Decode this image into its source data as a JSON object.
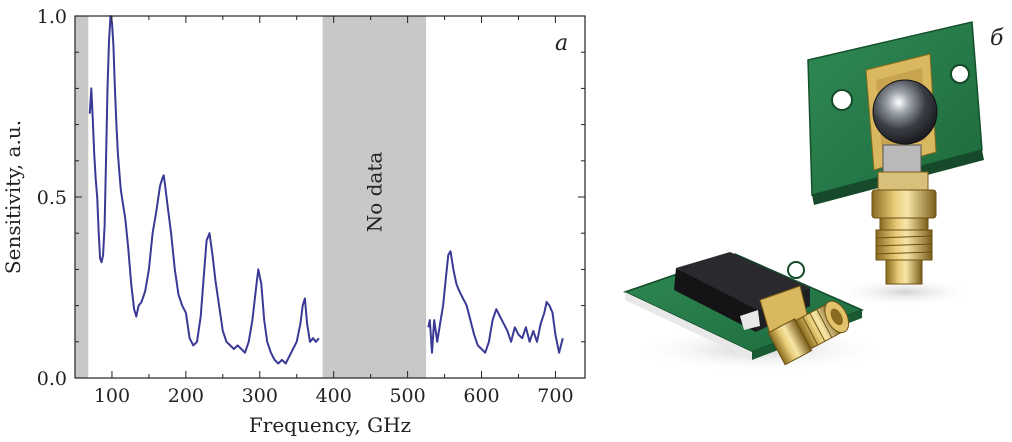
{
  "panel_a_label": "a",
  "panel_b_label": "б",
  "no_data_label": "No data",
  "colors": {
    "line": "#3a3a96",
    "shade": "#c8c8c8",
    "axis": "#222222"
  },
  "chart_data": {
    "type": "line",
    "xlabel": "Frequency, GHz",
    "ylabel": "Sensitivity, a.u.",
    "xlim": [
      50,
      740
    ],
    "ylim": [
      0.0,
      1.0
    ],
    "x_ticks": [
      100,
      200,
      300,
      400,
      500,
      600,
      700
    ],
    "y_ticks": [
      0.0,
      0.5,
      1.0
    ],
    "y_tick_labels": [
      "0.0",
      "0.5",
      "1.0"
    ],
    "grid": false,
    "shaded_regions": [
      [
        50,
        68
      ],
      [
        385,
        525
      ]
    ],
    "series": [
      {
        "segments": [
          {
            "x": [
              70,
              72,
              74,
              76,
              78,
              80,
              82,
              84,
              86,
              88,
              90,
              92,
              94,
              96,
              98,
              100,
              102,
              104,
              106,
              108,
              110,
              112,
              115,
              118,
              122,
              126,
              130,
              133,
              136,
              140,
              145,
              150,
              155,
              160,
              165,
              168,
              170,
              172,
              175,
              180,
              185,
              190,
              195,
              200,
              205,
              210,
              215,
              220,
              225,
              228,
              232,
              236,
              240,
              245,
              250,
              255,
              260,
              265,
              270,
              275,
              280,
              285,
              290,
              295,
              298,
              302,
              306,
              310,
              315,
              320,
              325,
              330,
              335,
              340,
              345,
              350,
              355,
              358,
              361,
              364,
              368,
              372,
              376,
              380
            ],
            "y": [
              0.73,
              0.8,
              0.72,
              0.62,
              0.55,
              0.5,
              0.4,
              0.33,
              0.32,
              0.34,
              0.42,
              0.6,
              0.8,
              0.93,
              1.0,
              0.98,
              0.92,
              0.8,
              0.7,
              0.62,
              0.57,
              0.52,
              0.48,
              0.44,
              0.36,
              0.26,
              0.19,
              0.17,
              0.2,
              0.21,
              0.24,
              0.3,
              0.4,
              0.46,
              0.53,
              0.55,
              0.56,
              0.53,
              0.48,
              0.4,
              0.3,
              0.23,
              0.2,
              0.18,
              0.11,
              0.09,
              0.1,
              0.17,
              0.3,
              0.38,
              0.4,
              0.34,
              0.27,
              0.2,
              0.13,
              0.1,
              0.09,
              0.08,
              0.09,
              0.08,
              0.07,
              0.1,
              0.16,
              0.25,
              0.3,
              0.26,
              0.16,
              0.1,
              0.07,
              0.05,
              0.04,
              0.05,
              0.04,
              0.06,
              0.08,
              0.1,
              0.15,
              0.2,
              0.22,
              0.15,
              0.1,
              0.11,
              0.1,
              0.11
            ]
          },
          {
            "x": [
              528,
              530,
              533,
              536,
              540,
              544,
              548,
              552,
              555,
              558,
              562,
              566,
              570,
              575,
              580,
              585,
              590,
              595,
              600,
              605,
              610,
              615,
              620,
              625,
              630,
              635,
              640,
              645,
              650,
              655,
              660,
              665,
              670,
              675,
              680,
              685,
              688,
              692,
              696,
              700,
              705,
              710
            ],
            "y": [
              0.14,
              0.16,
              0.07,
              0.16,
              0.1,
              0.15,
              0.2,
              0.28,
              0.34,
              0.35,
              0.3,
              0.26,
              0.24,
              0.22,
              0.2,
              0.16,
              0.12,
              0.09,
              0.08,
              0.07,
              0.1,
              0.16,
              0.19,
              0.17,
              0.15,
              0.13,
              0.1,
              0.14,
              0.12,
              0.11,
              0.14,
              0.1,
              0.13,
              0.1,
              0.15,
              0.18,
              0.21,
              0.2,
              0.18,
              0.12,
              0.07,
              0.11
            ]
          }
        ]
      }
    ]
  }
}
